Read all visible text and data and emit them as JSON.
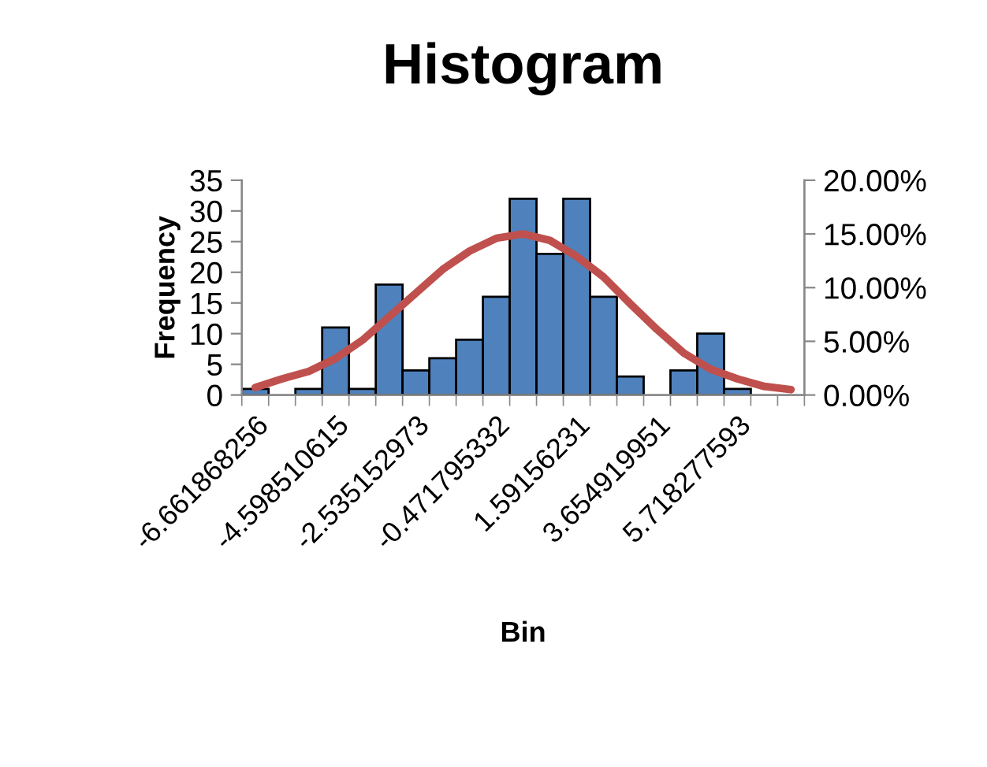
{
  "chart_data": {
    "type": "bar",
    "title": "Histogram",
    "xlabel": "Bin",
    "ylabel": "Frequency",
    "categories": [
      "-6.661868256",
      null,
      null,
      "-4.598510615",
      null,
      null,
      "-2.535152973",
      null,
      null,
      "-0.471795332",
      null,
      null,
      "1.59156231",
      null,
      null,
      "3.654919951",
      null,
      null,
      "5.718277593",
      null,
      null
    ],
    "series": [
      {
        "color": "#4f81bd",
        "values": [
          1,
          0,
          1,
          11,
          1,
          18,
          4,
          6,
          9,
          16,
          32,
          23,
          32,
          16,
          3,
          0,
          4,
          10,
          1,
          0,
          0
        ]
      },
      {
        "type": "line",
        "axis": "y2",
        "color": "#c0504d",
        "marker": "none",
        "line_style": "solid",
        "values": [
          0.7,
          1.5,
          2.2,
          3.4,
          5.1,
          7.3,
          9.5,
          11.7,
          13.4,
          14.6,
          15.0,
          14.4,
          12.9,
          11.0,
          8.5,
          6.1,
          3.9,
          2.4,
          1.5,
          0.8,
          0.5
        ]
      }
    ],
    "ylim": [
      0,
      35
    ],
    "yticks": [
      0,
      5,
      10,
      15,
      20,
      25,
      30,
      35
    ],
    "y2lim": [
      0,
      20
    ],
    "y2ticks": [
      {
        "value": 0,
        "label": "0.00%"
      },
      {
        "value": 5,
        "label": "5.00%"
      },
      {
        "value": 10,
        "label": "10.00%"
      },
      {
        "value": 15,
        "label": "15.00%"
      },
      {
        "value": 20,
        "label": "20.00%"
      }
    ],
    "grid": false,
    "legend": false
  }
}
